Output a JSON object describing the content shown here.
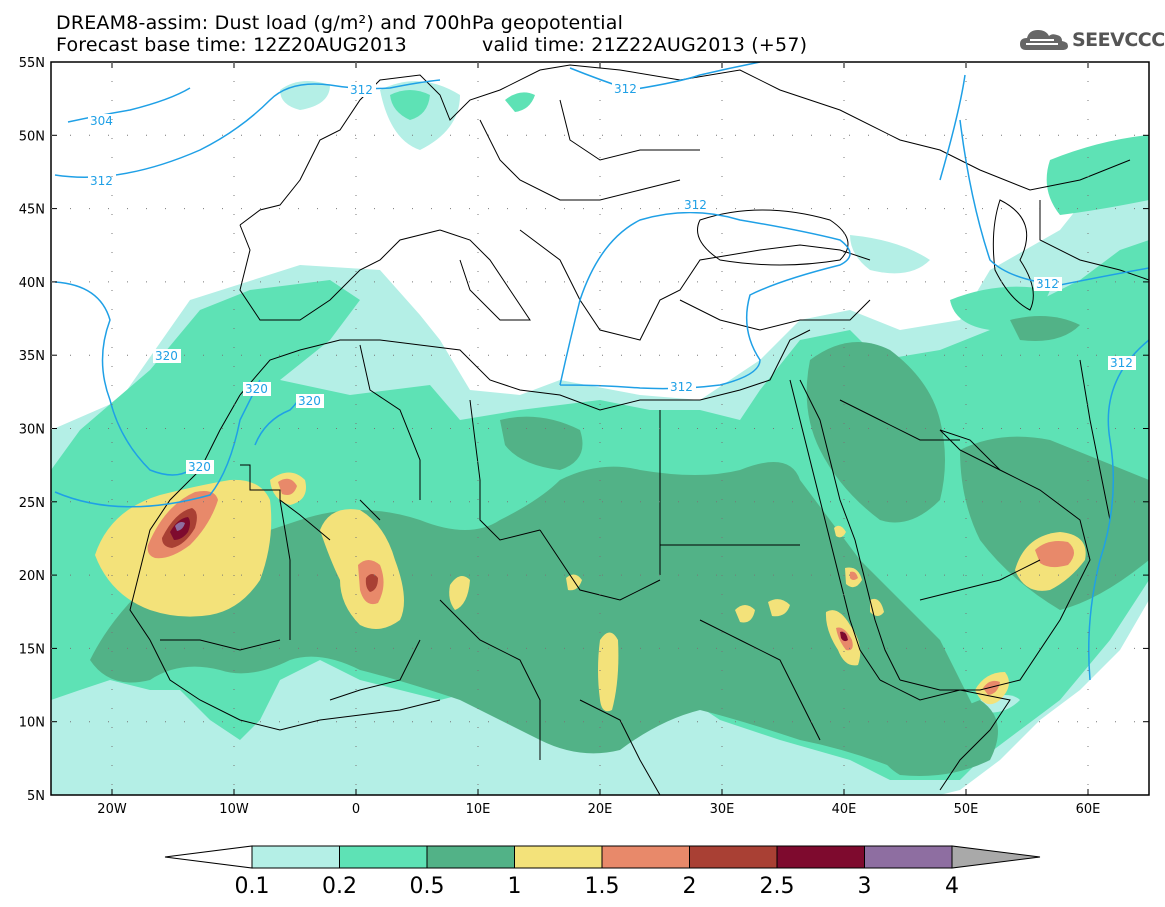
{
  "title": {
    "line1": "DREAM8-assim: Dust load (g/m²) and 700hPa geopotential",
    "line2_left": "Forecast base time: 12Z20AUG2013",
    "line2_right": "valid time: 21Z22AUG2013 (+57)"
  },
  "logo": {
    "text": "SEEVCCC",
    "icon": "cloud-icon"
  },
  "map": {
    "lat_labels": [
      "55N",
      "50N",
      "45N",
      "40N",
      "35N",
      "30N",
      "25N",
      "20N",
      "15N",
      "10N",
      "5N"
    ],
    "lon_labels": [
      "20W",
      "10W",
      "0",
      "10E",
      "20E",
      "30E",
      "40E",
      "50E",
      "60E"
    ]
  },
  "contours": {
    "labels": [
      "304",
      "312",
      "312",
      "312",
      "312",
      "312",
      "312",
      "312",
      "320",
      "320",
      "320",
      "320"
    ]
  },
  "colorbar": {
    "ticks": [
      "0.1",
      "0.2",
      "0.5",
      "1",
      "1.5",
      "2",
      "2.5",
      "3",
      "4"
    ],
    "colors": [
      "#b4efe6",
      "#5ee2b5",
      "#52b287",
      "#f3e27a",
      "#e8896a",
      "#a94034",
      "#7e0a2e",
      "#8e6ea1",
      "#a9a9a9"
    ]
  }
}
